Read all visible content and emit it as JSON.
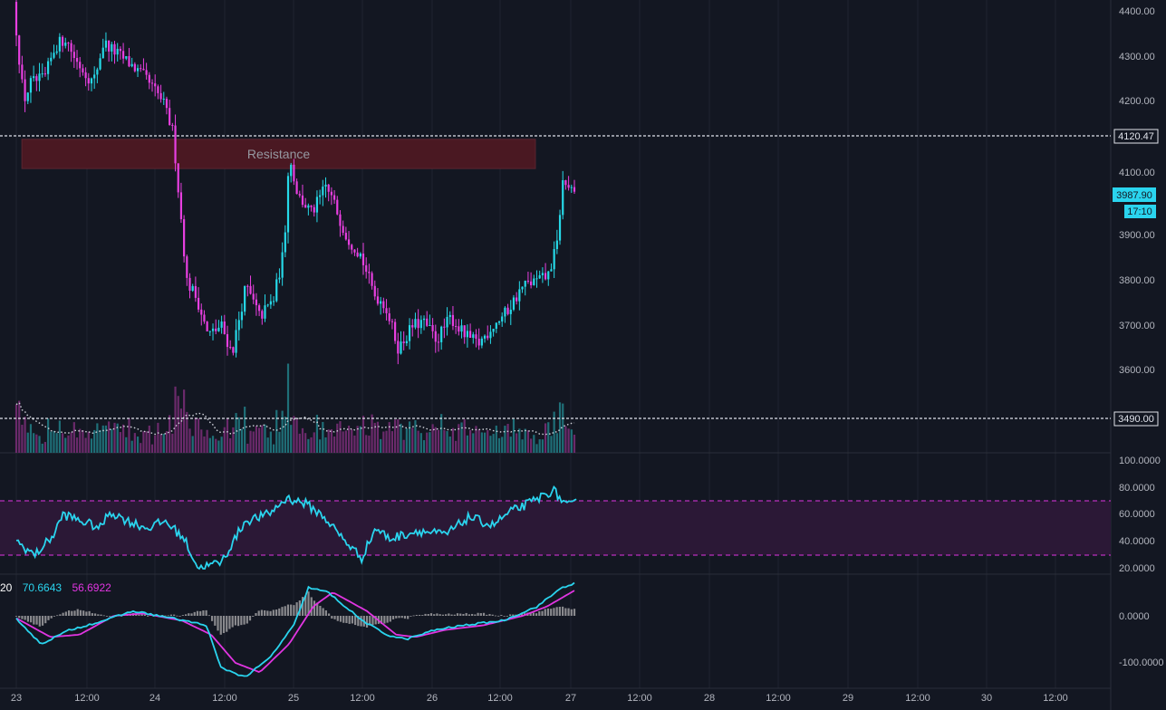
{
  "chart_data": [
    {
      "type": "candlestick",
      "name_hint": "price",
      "colors": {
        "up": "#26d9e8",
        "down": "#e83fe0",
        "volume_up": "#1f6f78",
        "volume_down": "#6b2a6b",
        "volume_ma": "#d1d4dc"
      },
      "x_ticks": [
        "23",
        "12:00",
        "24",
        "12:00",
        "25",
        "12:00",
        "26",
        "12:00",
        "27",
        "12:00",
        "28",
        "12:00",
        "29",
        "12:00",
        "30",
        "12:00"
      ],
      "y_ticks": [
        "4400.00",
        "4300.00",
        "4200.00",
        "4100.00",
        "3900.00",
        "3800.00",
        "3700.00",
        "3600.00"
      ],
      "ylim": [
        3490,
        4420
      ],
      "path_points": [
        [
          0,
          4420
        ],
        [
          0.08,
          4300
        ],
        [
          0.15,
          4200
        ],
        [
          0.25,
          4240
        ],
        [
          0.45,
          4250
        ],
        [
          0.6,
          4320
        ],
        [
          0.75,
          4340
        ],
        [
          0.9,
          4290
        ],
        [
          1.0,
          4270
        ],
        [
          1.15,
          4240
        ],
        [
          1.3,
          4330
        ],
        [
          1.45,
          4310
        ],
        [
          1.7,
          4280
        ],
        [
          1.9,
          4250
        ],
        [
          2.15,
          4200
        ],
        [
          2.3,
          4130
        ],
        [
          2.5,
          3800
        ],
        [
          2.65,
          3760
        ],
        [
          2.8,
          3680
        ],
        [
          3.0,
          3700
        ],
        [
          3.15,
          3640
        ],
        [
          3.35,
          3790
        ],
        [
          3.55,
          3720
        ],
        [
          3.75,
          3760
        ],
        [
          3.9,
          3870
        ],
        [
          3.97,
          4080
        ],
        [
          4.1,
          3990
        ],
        [
          4.3,
          3950
        ],
        [
          4.5,
          4010
        ],
        [
          4.6,
          3980
        ],
        [
          4.8,
          3900
        ],
        [
          5.0,
          3860
        ],
        [
          5.2,
          3770
        ],
        [
          5.35,
          3750
        ],
        [
          5.55,
          3650
        ],
        [
          5.75,
          3700
        ],
        [
          5.9,
          3710
        ],
        [
          6.1,
          3670
        ],
        [
          6.3,
          3720
        ],
        [
          6.5,
          3680
        ],
        [
          6.7,
          3660
        ],
        [
          6.9,
          3700
        ],
        [
          7.1,
          3730
        ],
        [
          7.35,
          3790
        ],
        [
          7.7,
          3810
        ],
        [
          7.85,
          3890
        ],
        [
          7.9,
          4020
        ],
        [
          8.0,
          4010
        ],
        [
          8.07,
          3987.9
        ]
      ],
      "last_price": "3987.90",
      "countdown": "17:10",
      "resistance": {
        "label": "Resistance",
        "top": 4115,
        "bottom": 4050,
        "x_from": 0.08,
        "x_to": 7.48
      },
      "horizontal_lines": [
        {
          "value": 4120.47,
          "label": "4120.47"
        },
        {
          "value": 3490,
          "label": "3490.00"
        }
      ]
    },
    {
      "type": "line",
      "name_hint": "rsi",
      "y_ticks": [
        "100.0000",
        "80.0000",
        "60.0000",
        "40.0000",
        "20.0000"
      ],
      "ylim": [
        20,
        100
      ],
      "upper_band": 70,
      "lower_band": 30,
      "series_color": "#2ad4ee",
      "band_color": "#e135e1",
      "path_points": [
        [
          0,
          40
        ],
        [
          0.2,
          30
        ],
        [
          0.4,
          45
        ],
        [
          0.5,
          60
        ],
        [
          0.7,
          55
        ],
        [
          0.9,
          50
        ],
        [
          1.0,
          62
        ],
        [
          1.2,
          55
        ],
        [
          1.4,
          50
        ],
        [
          1.6,
          55
        ],
        [
          1.8,
          42
        ],
        [
          1.95,
          20
        ],
        [
          2.2,
          25
        ],
        [
          2.45,
          55
        ],
        [
          2.7,
          60
        ],
        [
          2.9,
          72
        ],
        [
          3.1,
          68
        ],
        [
          3.3,
          58
        ],
        [
          3.5,
          42
        ],
        [
          3.7,
          28
        ],
        [
          3.85,
          50
        ],
        [
          4.0,
          42
        ],
        [
          4.3,
          48
        ],
        [
          4.6,
          45
        ],
        [
          4.85,
          58
        ],
        [
          5.1,
          52
        ],
        [
          5.3,
          62
        ],
        [
          5.55,
          70
        ],
        [
          5.75,
          78
        ],
        [
          5.9,
          66
        ],
        [
          6.0,
          68
        ]
      ]
    },
    {
      "type": "line",
      "name_hint": "macd",
      "values_text": [
        "20",
        "70.6643",
        "56.6922"
      ],
      "y_ticks": [
        "0.0000",
        "-100.0000"
      ],
      "ylim": [
        -140,
        80
      ],
      "macd_color": "#2ad4ee",
      "signal_color": "#e135e1",
      "histogram_color": "#8a8a8e",
      "macd_points": [
        [
          0,
          -5
        ],
        [
          0.25,
          -60
        ],
        [
          0.55,
          -30
        ],
        [
          0.9,
          -10
        ],
        [
          1.2,
          10
        ],
        [
          1.6,
          -5
        ],
        [
          1.95,
          -20
        ],
        [
          2.1,
          -110
        ],
        [
          2.35,
          -130
        ],
        [
          2.6,
          -90
        ],
        [
          2.85,
          -20
        ],
        [
          3.0,
          60
        ],
        [
          3.2,
          50
        ],
        [
          3.55,
          -10
        ],
        [
          3.8,
          -40
        ],
        [
          4.0,
          -50
        ],
        [
          4.3,
          -30
        ],
        [
          4.6,
          -20
        ],
        [
          5.0,
          -10
        ],
        [
          5.35,
          20
        ],
        [
          5.6,
          60
        ],
        [
          5.75,
          70
        ]
      ],
      "signal_points": [
        [
          0,
          -5
        ],
        [
          0.35,
          -45
        ],
        [
          0.65,
          -40
        ],
        [
          1.0,
          0
        ],
        [
          1.3,
          5
        ],
        [
          1.7,
          -10
        ],
        [
          2.0,
          -40
        ],
        [
          2.25,
          -100
        ],
        [
          2.5,
          -120
        ],
        [
          2.8,
          -60
        ],
        [
          3.05,
          20
        ],
        [
          3.25,
          50
        ],
        [
          3.6,
          10
        ],
        [
          3.9,
          -40
        ],
        [
          4.1,
          -45
        ],
        [
          4.4,
          -30
        ],
        [
          4.8,
          -20
        ],
        [
          5.2,
          0
        ],
        [
          5.45,
          20
        ],
        [
          5.75,
          56
        ]
      ]
    }
  ]
}
